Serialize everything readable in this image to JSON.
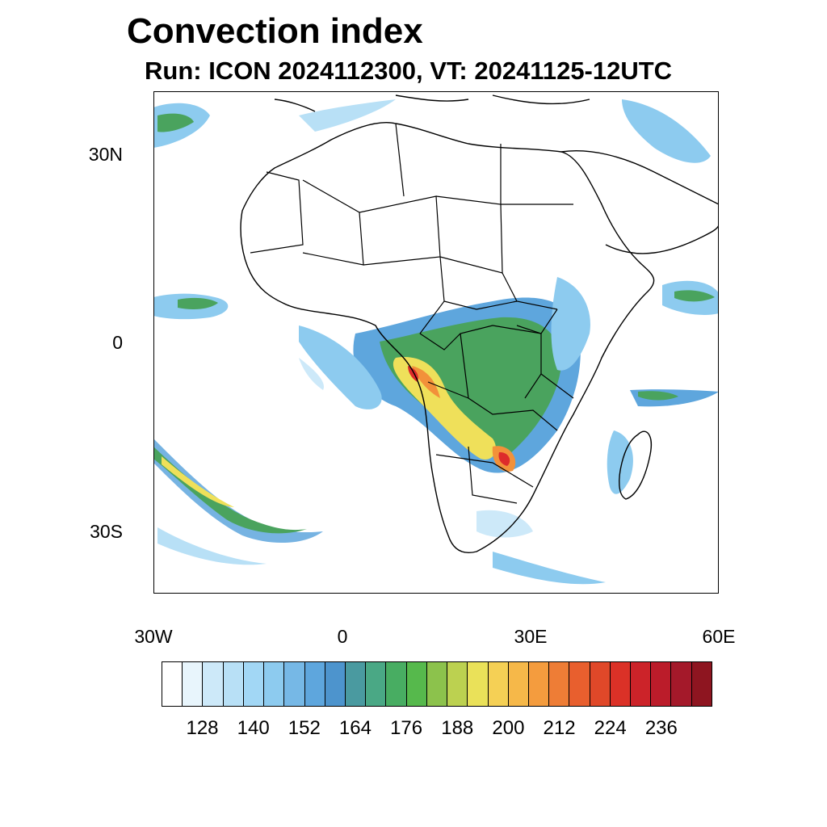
{
  "title": "Convection index",
  "subtitle": "Run: ICON 2024112300,  VT: 20241125-12UTC",
  "map": {
    "projection": "cylindrical equidistant",
    "lon_range": [
      -30,
      60
    ],
    "lat_range": [
      -40,
      40
    ],
    "lat_labels": [
      "30N",
      "0",
      "30S"
    ],
    "lon_labels": [
      "30W",
      "0",
      "30E",
      "60E"
    ],
    "field_colors": {
      "low": "#9fd4f3",
      "mid_low": "#5ea6dd",
      "mid": "#4aa35e",
      "mid_high": "#efe05a",
      "high": "#f2913a",
      "very_high": "#dd2b2b"
    }
  },
  "colorbar": {
    "colors": [
      "#ffffff",
      "#e8f5fc",
      "#cde9f9",
      "#b8e0f6",
      "#a2d7f5",
      "#8dcbef",
      "#76b8e6",
      "#5ea6dd",
      "#4d94cd",
      "#4a9aa0",
      "#4aa885",
      "#48ad62",
      "#56b94c",
      "#8cc24c",
      "#bcd150",
      "#eae159",
      "#f5d055",
      "#f6b849",
      "#f49c3e",
      "#ee7d36",
      "#e85f2e",
      "#e04829",
      "#db3127",
      "#cc2329",
      "#bb1c2a",
      "#a4192a",
      "#8e1520"
    ],
    "tick_labels": [
      "128",
      "140",
      "152",
      "164",
      "176",
      "188",
      "200",
      "212",
      "224",
      "236"
    ]
  }
}
